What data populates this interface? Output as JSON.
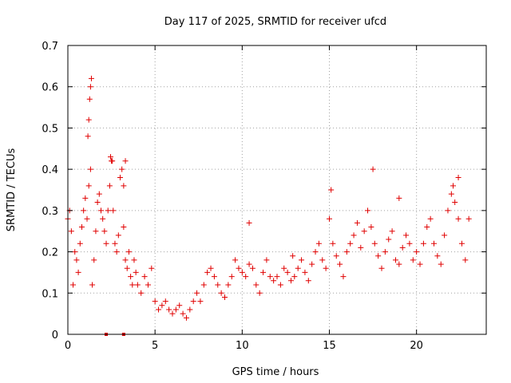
{
  "chart_data": {
    "type": "scatter",
    "title": "Day 117 of 2025, SRMTID for receiver ufcd",
    "xlabel": "GPS time / hours",
    "ylabel": "SRMTID / TECUs",
    "xlim": [
      0,
      24
    ],
    "ylim": [
      0,
      0.7
    ],
    "xticks": [
      0,
      5,
      10,
      15,
      20
    ],
    "xtick_labels": [
      "0",
      "5",
      "10",
      "15",
      "20"
    ],
    "yticks": [
      0,
      0.1,
      0.2,
      0.3,
      0.4,
      0.5,
      0.6,
      0.7
    ],
    "ytick_labels": [
      "0",
      "0.1",
      "0.2",
      "0.3",
      "0.4",
      "0.5",
      "0.6",
      "0.7"
    ],
    "grid": true,
    "marker": "+",
    "color": "#e00000",
    "series": [
      {
        "name": "SRMTID",
        "x": [
          0.0,
          0.1,
          0.2,
          0.3,
          0.4,
          0.5,
          0.6,
          0.7,
          0.8,
          0.9,
          1.0,
          1.1,
          1.2,
          1.3,
          1.4,
          1.5,
          1.6,
          1.7,
          1.8,
          1.9,
          2.0,
          2.1,
          2.2,
          2.3,
          2.4,
          2.5,
          2.6,
          2.7,
          2.8,
          2.9,
          3.0,
          3.1,
          3.2,
          3.3,
          3.4,
          3.5,
          3.6,
          3.7,
          3.8,
          3.9,
          4.0,
          4.2,
          4.4,
          4.6,
          4.8,
          5.0,
          5.2,
          5.4,
          5.6,
          5.8,
          6.0,
          6.2,
          6.4,
          6.6,
          6.8,
          7.0,
          7.2,
          7.4,
          7.6,
          7.8,
          8.0,
          8.2,
          8.4,
          8.6,
          8.8,
          9.0,
          9.2,
          9.4,
          9.6,
          9.8,
          10.0,
          10.2,
          10.4,
          10.6,
          10.8,
          11.0,
          11.2,
          11.4,
          11.6,
          11.8,
          12.0,
          12.2,
          12.4,
          12.6,
          12.8,
          13.0,
          13.2,
          13.4,
          13.6,
          13.8,
          14.0,
          14.2,
          14.4,
          14.6,
          14.8,
          15.0,
          15.2,
          15.4,
          15.6,
          15.8,
          16.0,
          16.2,
          16.4,
          16.6,
          16.8,
          17.0,
          17.2,
          17.4,
          17.6,
          17.8,
          18.0,
          18.2,
          18.4,
          18.6,
          18.8,
          19.0,
          19.2,
          19.4,
          19.6,
          19.8,
          20.0,
          20.2,
          20.4,
          20.6,
          20.8,
          21.0,
          21.2,
          21.4,
          21.6,
          21.8,
          22.0,
          22.2,
          22.4,
          22.6,
          22.8,
          23.0,
          1.15,
          1.2,
          1.25,
          1.3,
          1.35,
          2.45,
          2.55,
          3.2,
          3.3,
          10.4,
          12.9,
          15.1,
          17.5,
          19.0,
          22.1,
          22.4
        ],
        "y": [
          0.28,
          0.3,
          0.25,
          0.12,
          0.2,
          0.18,
          0.15,
          0.22,
          0.26,
          0.3,
          0.33,
          0.28,
          0.36,
          0.4,
          0.12,
          0.18,
          0.25,
          0.32,
          0.34,
          0.3,
          0.28,
          0.25,
          0.22,
          0.3,
          0.36,
          0.42,
          0.3,
          0.22,
          0.2,
          0.24,
          0.38,
          0.4,
          0.26,
          0.18,
          0.16,
          0.2,
          0.14,
          0.12,
          0.18,
          0.15,
          0.12,
          0.1,
          0.14,
          0.12,
          0.16,
          0.08,
          0.06,
          0.07,
          0.08,
          0.06,
          0.05,
          0.06,
          0.07,
          0.05,
          0.04,
          0.06,
          0.08,
          0.1,
          0.08,
          0.12,
          0.15,
          0.16,
          0.14,
          0.12,
          0.1,
          0.09,
          0.12,
          0.14,
          0.18,
          0.16,
          0.15,
          0.14,
          0.17,
          0.16,
          0.12,
          0.1,
          0.15,
          0.18,
          0.14,
          0.13,
          0.14,
          0.12,
          0.16,
          0.15,
          0.13,
          0.14,
          0.16,
          0.18,
          0.15,
          0.13,
          0.17,
          0.2,
          0.22,
          0.18,
          0.16,
          0.28,
          0.22,
          0.19,
          0.17,
          0.14,
          0.2,
          0.22,
          0.24,
          0.27,
          0.21,
          0.25,
          0.3,
          0.26,
          0.22,
          0.19,
          0.16,
          0.2,
          0.23,
          0.25,
          0.18,
          0.17,
          0.21,
          0.24,
          0.22,
          0.18,
          0.2,
          0.17,
          0.22,
          0.26,
          0.28,
          0.22,
          0.19,
          0.17,
          0.24,
          0.3,
          0.34,
          0.32,
          0.28,
          0.22,
          0.18,
          0.28,
          0.48,
          0.52,
          0.57,
          0.6,
          0.62,
          0.43,
          0.42,
          0.36,
          0.42,
          0.27,
          0.19,
          0.35,
          0.4,
          0.33,
          0.36,
          0.38
        ]
      }
    ],
    "gap_markers_x": [
      2.2,
      3.2
    ]
  }
}
